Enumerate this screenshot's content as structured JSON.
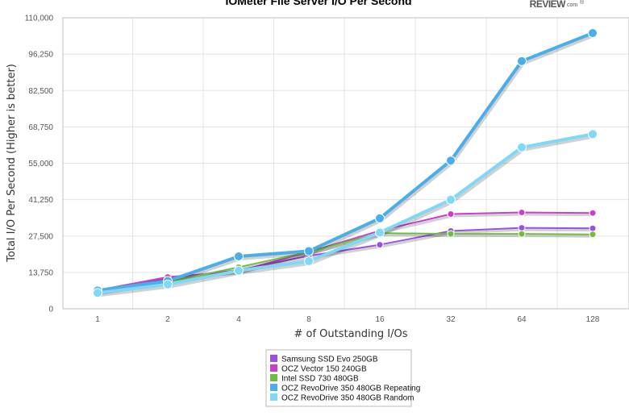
{
  "logo": {
    "text": "REVIEW",
    "suffix": "com",
    "reg": "®"
  },
  "chart_data": {
    "type": "line",
    "title": "IOMeter File Server I/O Per Second",
    "xlabel": "# of Outstanding I/Os",
    "ylabel": "Total I/O Per Second (Higher is better)",
    "categories": [
      "1",
      "2",
      "4",
      "8",
      "16",
      "32",
      "64",
      "128"
    ],
    "ylim": [
      0,
      110000
    ],
    "yticks": [
      0,
      13750,
      27500,
      41250,
      55000,
      68750,
      82500,
      96250,
      110000
    ],
    "ytick_labels": [
      "0",
      "13,750",
      "27,500",
      "41,250",
      "55,000",
      "68,750",
      "82,500",
      "96,250",
      "110,000"
    ],
    "grid": true,
    "legend_position": "bottom",
    "series": [
      {
        "name": "Samsung SSD Evo 250GB",
        "color": "#9b51e0",
        "values": [
          6800,
          11500,
          14600,
          20000,
          24200,
          29400,
          30600,
          30400
        ]
      },
      {
        "name": "OCZ Vector 150 240GB",
        "color": "#c93fc9",
        "values": [
          7000,
          12000,
          14200,
          21500,
          29500,
          35800,
          36400,
          36200
        ]
      },
      {
        "name": "Intel SSD 730 480GB",
        "color": "#6cbf3c",
        "values": [
          6400,
          10200,
          15700,
          21500,
          28600,
          28300,
          28300,
          28100
        ]
      },
      {
        "name": "OCZ RevoDrive 350 480GB Repeating",
        "color": "#4aaee8",
        "values": [
          6900,
          10500,
          19800,
          21800,
          34200,
          56000,
          93600,
          104200
        ]
      },
      {
        "name": "OCZ RevoDrive 350 480GB Random",
        "color": "#7fd8f5",
        "values": [
          6000,
          9200,
          14400,
          18000,
          28800,
          41200,
          61000,
          66000
        ]
      }
    ]
  }
}
